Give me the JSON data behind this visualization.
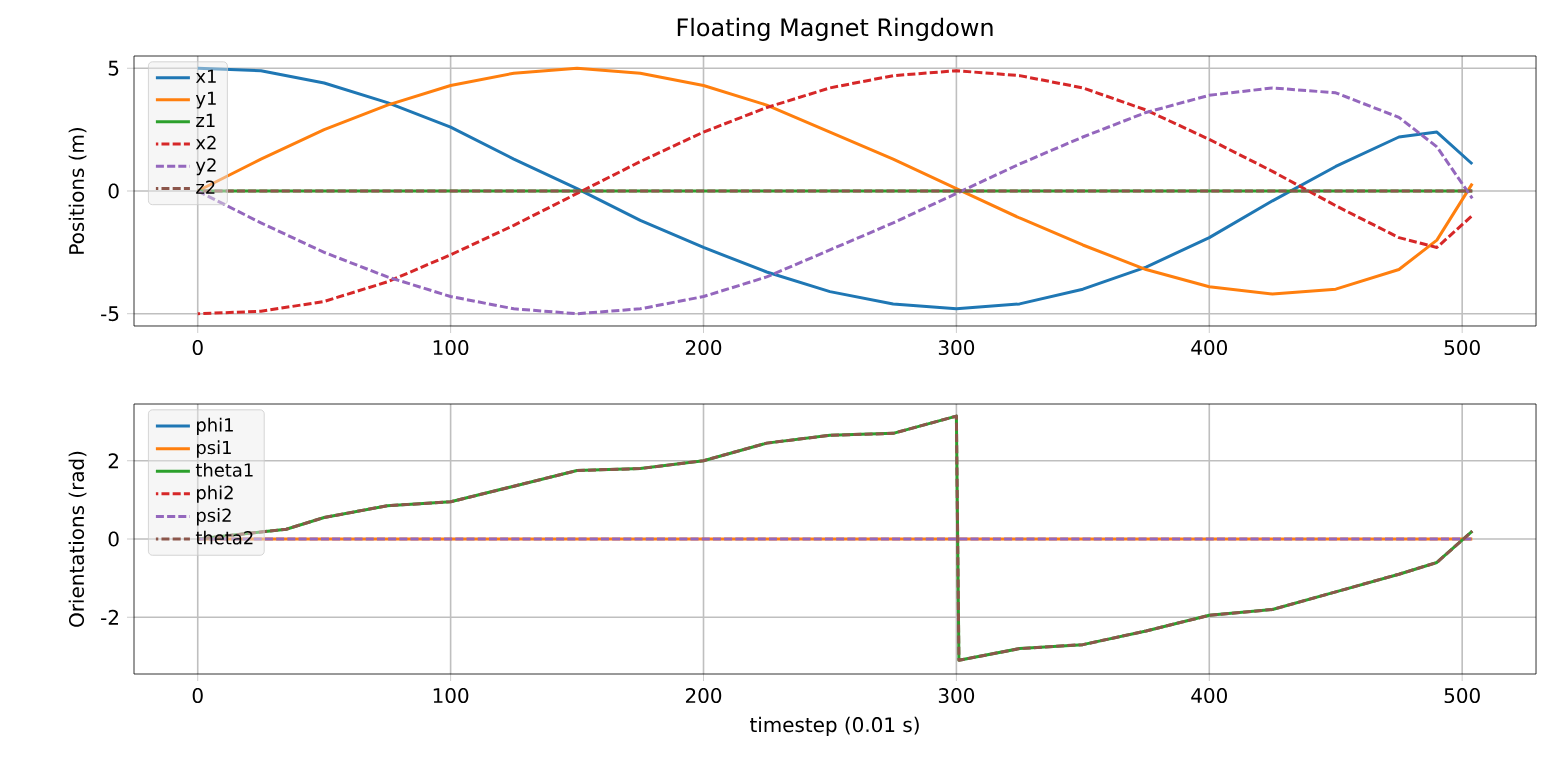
{
  "chart_data": [
    {
      "type": "line",
      "title": "Floating Magnet Ringdown",
      "ylabel": "Positions (m)",
      "x": [
        0,
        25,
        50,
        75,
        100,
        125,
        150,
        175,
        200,
        225,
        250,
        275,
        300,
        325,
        350,
        375,
        400,
        425,
        450,
        475,
        490,
        504
      ],
      "xlim": [
        -25.2,
        529.2
      ],
      "xticks": [
        0,
        100,
        200,
        300,
        400,
        500
      ],
      "ylim": [
        -5.5,
        5.5
      ],
      "yticks": [
        -5,
        0,
        5
      ],
      "grid": true,
      "legend": "top left",
      "series": [
        {
          "name": "x1",
          "color": "#1f77b4",
          "line_style": "solid",
          "values": [
            5.0,
            4.9,
            4.4,
            3.6,
            2.6,
            1.3,
            0.1,
            -1.2,
            -2.3,
            -3.3,
            -4.1,
            -4.6,
            -4.8,
            -4.6,
            -4.0,
            -3.1,
            -1.9,
            -0.4,
            1.0,
            2.2,
            2.4,
            1.1
          ]
        },
        {
          "name": "y1",
          "color": "#ff7f0e",
          "line_style": "solid",
          "values": [
            0,
            1.3,
            2.5,
            3.5,
            4.3,
            4.8,
            5.0,
            4.8,
            4.3,
            3.5,
            2.4,
            1.3,
            0.1,
            -1.1,
            -2.2,
            -3.2,
            -3.9,
            -4.2,
            -4.0,
            -3.2,
            -2.0,
            0.3
          ]
        },
        {
          "name": "z1",
          "color": "#2ca02c",
          "line_style": "solid",
          "values": [
            0,
            0,
            0,
            0,
            0,
            0,
            0,
            0,
            0,
            0,
            0,
            0,
            0,
            0,
            0,
            0,
            0,
            0,
            0,
            0,
            0,
            0
          ]
        },
        {
          "name": "x2",
          "color": "#d62728",
          "line_style": "dashed",
          "values": [
            -5.0,
            -4.9,
            -4.5,
            -3.7,
            -2.6,
            -1.4,
            -0.1,
            1.2,
            2.4,
            3.4,
            4.2,
            4.7,
            4.9,
            4.7,
            4.2,
            3.3,
            2.1,
            0.8,
            -0.6,
            -1.9,
            -2.3,
            -1.0
          ]
        },
        {
          "name": "y2",
          "color": "#9467bd",
          "line_style": "dashed",
          "values": [
            0,
            -1.3,
            -2.5,
            -3.5,
            -4.3,
            -4.8,
            -5.0,
            -4.8,
            -4.3,
            -3.5,
            -2.4,
            -1.3,
            -0.1,
            1.1,
            2.2,
            3.2,
            3.9,
            4.2,
            4.0,
            3.0,
            1.8,
            -0.3
          ]
        },
        {
          "name": "z2",
          "color": "#8c564b",
          "line_style": "dashed",
          "values": [
            0,
            0,
            0,
            0,
            0,
            0,
            0,
            0,
            0,
            0,
            0,
            0,
            0,
            0,
            0,
            0,
            0,
            0,
            0,
            0,
            0,
            0
          ]
        }
      ]
    },
    {
      "type": "line",
      "ylabel": "Orientations (rad)",
      "xlabel": "timestep (0.01 s)",
      "x": [
        0,
        35,
        50,
        75,
        100,
        125,
        150,
        175,
        200,
        225,
        250,
        275,
        300,
        301,
        325,
        350,
        375,
        400,
        425,
        450,
        475,
        490,
        504
      ],
      "xlim": [
        -25.2,
        529.2
      ],
      "xticks": [
        0,
        100,
        200,
        300,
        400,
        500
      ],
      "ylim": [
        -3.45,
        3.45
      ],
      "yticks": [
        -2,
        0,
        2
      ],
      "grid": true,
      "legend": "top left",
      "series": [
        {
          "name": "phi1",
          "color": "#1f77b4",
          "line_style": "solid",
          "values": [
            null,
            null,
            null,
            null,
            null,
            null,
            null,
            null,
            null,
            null,
            null,
            null,
            null,
            null,
            null,
            null,
            null,
            null,
            null,
            null,
            null,
            null,
            null
          ]
        },
        {
          "name": "psi1",
          "color": "#ff7f0e",
          "line_style": "solid",
          "values": [
            0,
            0,
            0,
            0,
            0,
            0,
            0,
            0,
            0,
            0,
            0,
            0,
            0,
            0,
            0,
            0,
            0,
            0,
            0,
            0,
            0,
            0,
            0
          ]
        },
        {
          "name": "theta1",
          "color": "#2ca02c",
          "line_style": "solid",
          "values": [
            0,
            0.25,
            0.55,
            0.85,
            0.95,
            1.35,
            1.75,
            1.8,
            2.0,
            2.45,
            2.65,
            2.7,
            3.14,
            -3.1,
            -2.8,
            -2.7,
            -2.35,
            -1.95,
            -1.8,
            -1.35,
            -0.9,
            -0.6,
            0.2
          ]
        },
        {
          "name": "phi2",
          "color": "#d62728",
          "line_style": "dashed",
          "values": [
            null,
            null,
            null,
            null,
            null,
            null,
            null,
            null,
            null,
            null,
            null,
            null,
            null,
            null,
            null,
            null,
            null,
            null,
            null,
            null,
            null,
            null,
            null
          ]
        },
        {
          "name": "psi2",
          "color": "#9467bd",
          "line_style": "dashed",
          "values": [
            0,
            0,
            0,
            0,
            0,
            0,
            0,
            0,
            0,
            0,
            0,
            0,
            0,
            0,
            0,
            0,
            0,
            0,
            0,
            0,
            0,
            0,
            0
          ]
        },
        {
          "name": "theta2",
          "color": "#8c564b",
          "line_style": "dashed",
          "values": [
            0,
            0.25,
            0.55,
            0.85,
            0.95,
            1.35,
            1.75,
            1.8,
            2.0,
            2.45,
            2.65,
            2.7,
            3.14,
            -3.1,
            -2.8,
            -2.7,
            -2.35,
            -1.95,
            -1.8,
            -1.35,
            -0.9,
            -0.6,
            0.2
          ]
        }
      ]
    }
  ]
}
